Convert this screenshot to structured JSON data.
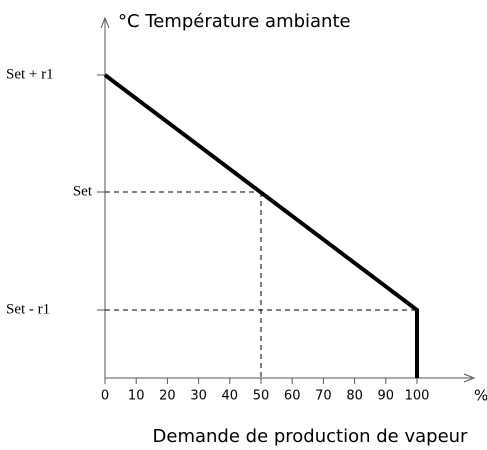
{
  "title": "°C  Température ambiante",
  "y_labels": [
    "Set + r1",
    "Set",
    "Set - r1"
  ],
  "x_axis": {
    "ticks": [
      0,
      10,
      20,
      30,
      40,
      50,
      60,
      70,
      80,
      90,
      100
    ],
    "unit": "%",
    "label": "Demande de production de vapeur"
  }
}
